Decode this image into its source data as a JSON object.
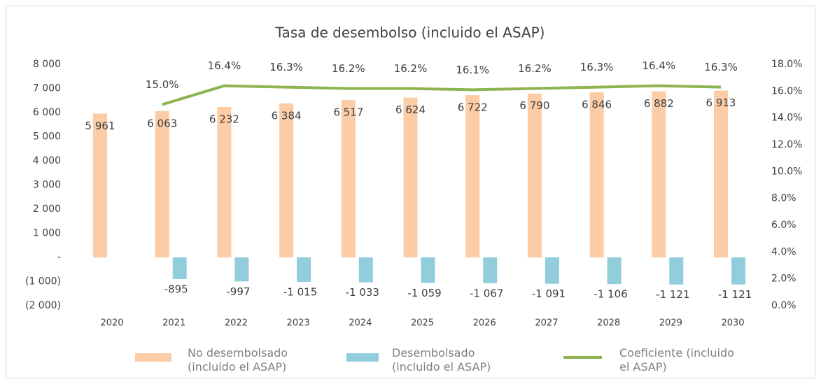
{
  "chart_data": {
    "type": "bar",
    "title": "Tasa de desembolso (incluido el ASAP)",
    "categories": [
      "2020",
      "2021",
      "2022",
      "2023",
      "2024",
      "2025",
      "2026",
      "2027",
      "2028",
      "2029",
      "2030"
    ],
    "series": [
      {
        "name": "No desembolsado (incluido el ASAP)",
        "type": "bar",
        "color": "#fbcca6",
        "values": [
          5961,
          6063,
          6232,
          6384,
          6517,
          6624,
          6722,
          6790,
          6846,
          6882,
          6913
        ],
        "value_labels": [
          "5 961",
          "6 063",
          "6 232",
          "6 384",
          "6 517",
          "6 624",
          "6 722",
          "6 790",
          "6 846",
          "6 882",
          "6 913"
        ]
      },
      {
        "name": "Desembolsado (incluido el ASAP)",
        "type": "bar",
        "color": "#92cddc",
        "values": [
          null,
          -895,
          -997,
          -1015,
          -1033,
          -1059,
          -1067,
          -1091,
          -1106,
          -1121,
          -1121
        ],
        "value_labels": [
          null,
          "-895",
          "-997",
          "-1 015",
          "-1 033",
          "-1 059",
          "-1 067",
          "-1 091",
          "-1 106",
          "-1 121",
          "-1 121"
        ]
      },
      {
        "name": "Coeficiente (incluido el ASAP)",
        "type": "line",
        "axis": "y2",
        "color": "#8db451",
        "values": [
          null,
          15.0,
          16.4,
          16.3,
          16.2,
          16.2,
          16.1,
          16.2,
          16.3,
          16.4,
          16.3
        ],
        "value_labels": [
          null,
          "15.0%",
          "16.4%",
          "16.3%",
          "16.2%",
          "16.2%",
          "16.1%",
          "16.2%",
          "16.3%",
          "16.4%",
          "16.3%"
        ]
      }
    ],
    "ylim": [
      -2000,
      8000
    ],
    "yticks": [
      {
        "value": -2000,
        "label": "(2 000)"
      },
      {
        "value": -1000,
        "label": "(1 000)"
      },
      {
        "value": 0,
        "label": "-"
      },
      {
        "value": 1000,
        "label": "1 000"
      },
      {
        "value": 2000,
        "label": "2 000"
      },
      {
        "value": 3000,
        "label": "3 000"
      },
      {
        "value": 4000,
        "label": "4 000"
      },
      {
        "value": 5000,
        "label": "5 000"
      },
      {
        "value": 6000,
        "label": "6 000"
      },
      {
        "value": 7000,
        "label": "7 000"
      },
      {
        "value": 8000,
        "label": "8 000"
      }
    ],
    "y2lim": [
      0,
      18
    ],
    "y2ticks": [
      {
        "value": 0,
        "label": "0.0%"
      },
      {
        "value": 2,
        "label": "2.0%"
      },
      {
        "value": 4,
        "label": "4.0%"
      },
      {
        "value": 6,
        "label": "6.0%"
      },
      {
        "value": 8,
        "label": "8.0%"
      },
      {
        "value": 10,
        "label": "10.0%"
      },
      {
        "value": 12,
        "label": "12.0%"
      },
      {
        "value": 14,
        "label": "14.0%"
      },
      {
        "value": 16,
        "label": "16.0%"
      },
      {
        "value": 18,
        "label": "18.0%"
      }
    ],
    "grid": false,
    "legend": "bottom"
  }
}
